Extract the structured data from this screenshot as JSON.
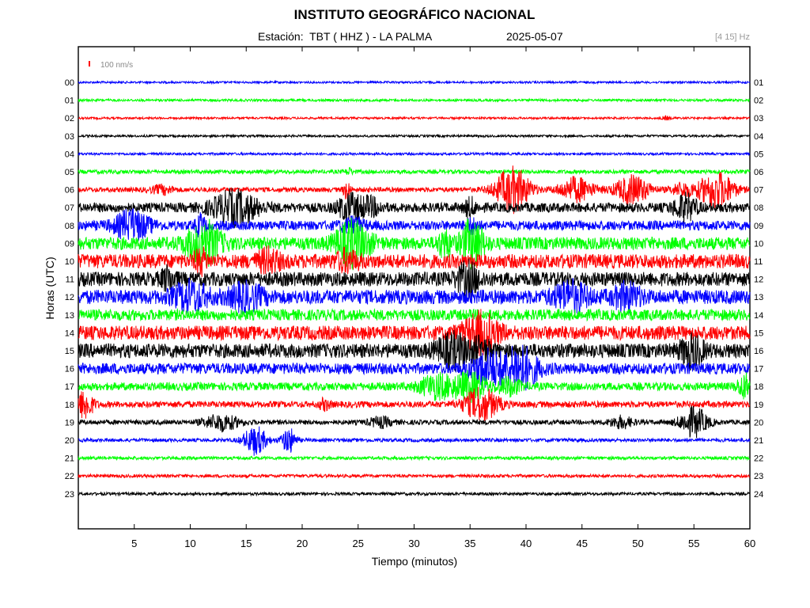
{
  "header": {
    "title": "INSTITUTO GEOGRÁFICO NACIONAL",
    "station_label": "Estación:  TBT ( HHZ ) - LA PALMA",
    "date": "2025-05-07",
    "filter": "[4 15] Hz"
  },
  "chart_data": {
    "type": "line",
    "title": "INSTITUTO GEOGRÁFICO NACIONAL",
    "xlabel": "Tiempo (minutos)",
    "ylabel": "Horas (UTC)",
    "xlim": [
      0,
      60
    ],
    "x_ticks": [
      5,
      10,
      15,
      20,
      25,
      30,
      35,
      40,
      45,
      50,
      55,
      60
    ],
    "scale_label": "100 nm/s",
    "scale_color": "#ff0000",
    "grid": false,
    "series_colors": [
      "#0000ff",
      "#00ff00",
      "#ff0000",
      "#000000"
    ],
    "rows": [
      {
        "left": "00",
        "right": "01",
        "color": "#0000ff",
        "noise": 1.3,
        "bursts": []
      },
      {
        "left": "01",
        "right": "02",
        "color": "#00ff00",
        "noise": 1.5,
        "bursts": []
      },
      {
        "left": "02",
        "right": "03",
        "color": "#ff0000",
        "noise": 1.3,
        "bursts": [
          {
            "t": 52.5,
            "amp": 2,
            "width": 0.4
          }
        ]
      },
      {
        "left": "03",
        "right": "04",
        "color": "#000000",
        "noise": 1.4,
        "bursts": []
      },
      {
        "left": "04",
        "right": "05",
        "color": "#0000ff",
        "noise": 1.5,
        "bursts": []
      },
      {
        "left": "05",
        "right": "06",
        "color": "#00ff00",
        "noise": 2.5,
        "bursts": [
          {
            "t": 24.2,
            "amp": 4,
            "width": 0.3
          }
        ]
      },
      {
        "left": "06",
        "right": "07",
        "color": "#ff0000",
        "noise": 3,
        "bursts": [
          {
            "t": 7.5,
            "amp": 5,
            "width": 1
          },
          {
            "t": 24,
            "amp": 12,
            "width": 0.3
          },
          {
            "t": 38.8,
            "amp": 28,
            "width": 1.5
          },
          {
            "t": 44.5,
            "amp": 15,
            "width": 1.5
          },
          {
            "t": 49.5,
            "amp": 18,
            "width": 1.5
          },
          {
            "t": 54,
            "amp": 8,
            "width": 1
          },
          {
            "t": 57,
            "amp": 24,
            "width": 1.5
          }
        ]
      },
      {
        "left": "07",
        "right": "08",
        "color": "#000000",
        "noise": 6,
        "bursts": [
          {
            "t": 14,
            "amp": 20,
            "width": 2
          },
          {
            "t": 24.2,
            "amp": 15,
            "width": 1
          },
          {
            "t": 26,
            "amp": 10,
            "width": 1
          },
          {
            "t": 35,
            "amp": 10,
            "width": 0.5
          },
          {
            "t": 54.2,
            "amp": 15,
            "width": 1
          }
        ]
      },
      {
        "left": "08",
        "right": "09",
        "color": "#0000ff",
        "noise": 6,
        "bursts": [
          {
            "t": 4.8,
            "amp": 18,
            "width": 1.5
          },
          {
            "t": 10.9,
            "amp": 12,
            "width": 0.4
          },
          {
            "t": 24.5,
            "amp": 8,
            "width": 1
          },
          {
            "t": 35.2,
            "amp": 8,
            "width": 0.5
          }
        ]
      },
      {
        "left": "09",
        "right": "10",
        "color": "#00ff00",
        "noise": 8,
        "bursts": [
          {
            "t": 11.2,
            "amp": 26,
            "width": 1.5
          },
          {
            "t": 24.5,
            "amp": 26,
            "width": 1.5
          },
          {
            "t": 32.7,
            "amp": 15,
            "width": 0.6
          },
          {
            "t": 35.2,
            "amp": 28,
            "width": 1
          }
        ]
      },
      {
        "left": "10",
        "right": "11",
        "color": "#ff0000",
        "noise": 9,
        "bursts": [
          {
            "t": 10.9,
            "amp": 14,
            "width": 0.5
          },
          {
            "t": 17,
            "amp": 12,
            "width": 1
          },
          {
            "t": 24,
            "amp": 10,
            "width": 1
          }
        ]
      },
      {
        "left": "11",
        "right": "12",
        "color": "#000000",
        "noise": 9,
        "bursts": [
          {
            "t": 34.8,
            "amp": 18,
            "width": 1
          },
          {
            "t": 8,
            "amp": 12,
            "width": 0.6
          }
        ]
      },
      {
        "left": "12",
        "right": "13",
        "color": "#0000ff",
        "noise": 9,
        "bursts": [
          {
            "t": 10,
            "amp": 16,
            "width": 1.5
          },
          {
            "t": 15,
            "amp": 14,
            "width": 1.5
          },
          {
            "t": 44,
            "amp": 16,
            "width": 1.5
          },
          {
            "t": 49,
            "amp": 14,
            "width": 1.2
          }
        ]
      },
      {
        "left": "13",
        "right": "14",
        "color": "#00ff00",
        "noise": 7,
        "bursts": []
      },
      {
        "left": "14",
        "right": "15",
        "color": "#ff0000",
        "noise": 9,
        "bursts": [
          {
            "t": 36,
            "amp": 22,
            "width": 1.5
          }
        ]
      },
      {
        "left": "15",
        "right": "16",
        "color": "#000000",
        "noise": 9,
        "bursts": [
          {
            "t": 33.5,
            "amp": 18,
            "width": 1.5
          },
          {
            "t": 36,
            "amp": 10,
            "width": 1
          },
          {
            "t": 54.8,
            "amp": 18,
            "width": 1
          }
        ]
      },
      {
        "left": "16",
        "right": "17",
        "color": "#0000ff",
        "noise": 7,
        "bursts": [
          {
            "t": 36.5,
            "amp": 20,
            "width": 1.5
          },
          {
            "t": 39.5,
            "amp": 26,
            "width": 1.5
          }
        ]
      },
      {
        "left": "17",
        "right": "18",
        "color": "#00ff00",
        "noise": 5,
        "bursts": [
          {
            "t": 32,
            "amp": 14,
            "width": 1.5
          },
          {
            "t": 35,
            "amp": 16,
            "width": 1.5
          },
          {
            "t": 38.5,
            "amp": 10,
            "width": 1
          },
          {
            "t": 59.5,
            "amp": 14,
            "width": 0.6
          }
        ]
      },
      {
        "left": "18",
        "right": "19",
        "color": "#ff0000",
        "noise": 4,
        "bursts": [
          {
            "t": 0.6,
            "amp": 18,
            "width": 0.7
          },
          {
            "t": 36,
            "amp": 20,
            "width": 1.5
          },
          {
            "t": 22,
            "amp": 6,
            "width": 0.5
          }
        ]
      },
      {
        "left": "19",
        "right": "20",
        "color": "#000000",
        "noise": 3,
        "bursts": [
          {
            "t": 12.8,
            "amp": 10,
            "width": 1.5
          },
          {
            "t": 27,
            "amp": 6,
            "width": 1
          },
          {
            "t": 48.5,
            "amp": 7,
            "width": 1
          },
          {
            "t": 55,
            "amp": 18,
            "width": 1.2
          }
        ]
      },
      {
        "left": "20",
        "right": "21",
        "color": "#0000ff",
        "noise": 2.2,
        "bursts": [
          {
            "t": 15.8,
            "amp": 18,
            "width": 1
          },
          {
            "t": 18.8,
            "amp": 16,
            "width": 0.6
          }
        ]
      },
      {
        "left": "21",
        "right": "22",
        "color": "#00ff00",
        "noise": 2,
        "bursts": []
      },
      {
        "left": "22",
        "right": "23",
        "color": "#ff0000",
        "noise": 2,
        "bursts": []
      },
      {
        "left": "23",
        "right": "24",
        "color": "#000000",
        "noise": 1.8,
        "bursts": []
      }
    ]
  }
}
